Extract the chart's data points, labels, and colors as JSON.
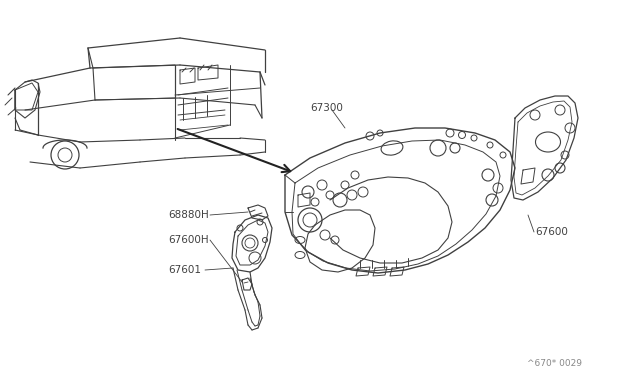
{
  "bg_color": "#ffffff",
  "line_color": "#404040",
  "text_color": "#404040",
  "watermark": "^670* 0029",
  "figsize": [
    6.4,
    3.72
  ],
  "dpi": 100
}
